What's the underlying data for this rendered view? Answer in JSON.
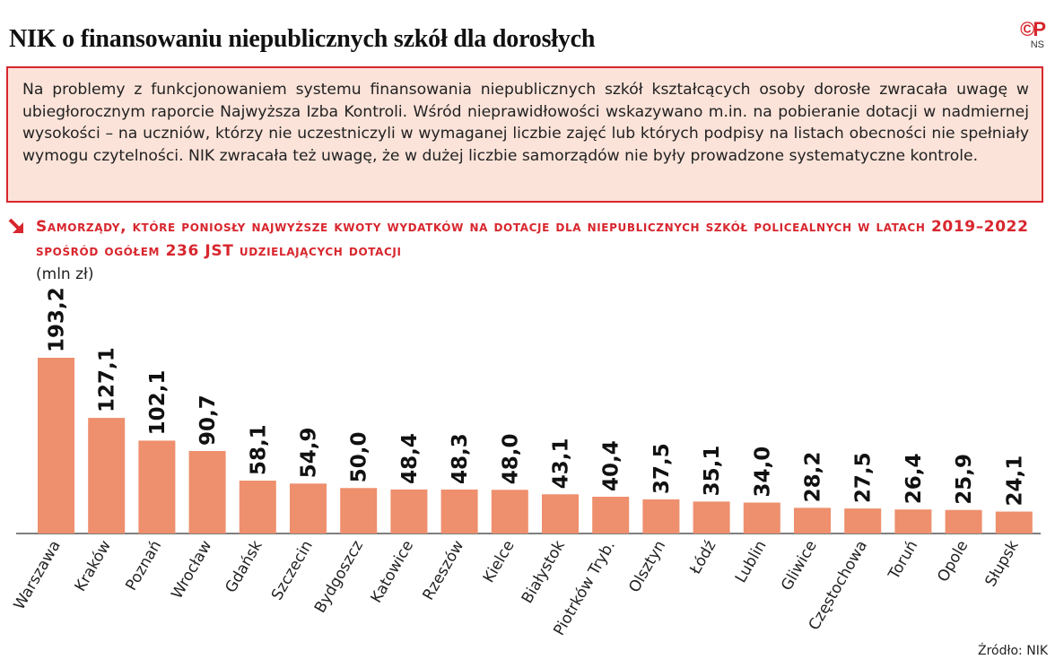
{
  "header": {
    "title": "NIK o finansowaniu niepublicznych szkół dla dorosłych",
    "logo_mark": "©P",
    "logo_initials": "NS"
  },
  "intro": {
    "text": "Na problemy z funkcjonowaniem systemu finansowania niepublicznych szkół kształcących osoby dorosłe zwracała uwagę w ubiegłorocznym raporcie Najwyższa Izba Kontroli. Wśród nieprawidłowości wskazywano m.in. na pobieranie dotacji w nadmiernej wysokości – na uczniów, którzy nie uczestniczyli w wymaganej liczbie zajęć lub których podpisy na listach obecności nie spełniały wymogu czytelności. NIK zwracała też uwagę, że w dużej liczbie samorządów nie były prowadzone systematyczne kontrole."
  },
  "colors": {
    "accent": "#d8262e",
    "bar": "#ee8f6d",
    "intro_bg": "#fbe3d9"
  },
  "icons": {
    "heading_marker": "arrow-down-right-icon"
  },
  "source": "Źródło: NIK",
  "chart_data": {
    "type": "bar",
    "title": "Samorządy, które poniosły najwyższe kwoty wydatków na dotacje dla niepublicznych szkół policealnych w latach 2019–2022 spośród ogółem 236 JST udzielających dotacji",
    "unit": "(mln zł)",
    "categories": [
      "Warszawa",
      "Kraków",
      "Poznań",
      "Wrocław",
      "Gdańsk",
      "Szczecin",
      "Bydgoszcz",
      "Katowice",
      "Rzeszów",
      "Kielce",
      "Białystok",
      "Piotrków Tryb.",
      "Olsztyn",
      "Łódź",
      "Lublin",
      "Gliwice",
      "Częstochowa",
      "Toruń",
      "Opole",
      "Słupsk"
    ],
    "values": [
      193.2,
      127.1,
      102.1,
      90.7,
      58.1,
      54.9,
      50.0,
      48.4,
      48.3,
      48.0,
      43.1,
      40.4,
      37.5,
      35.1,
      34.0,
      28.2,
      27.5,
      26.4,
      25.9,
      24.1
    ],
    "value_labels": [
      "193,2",
      "127,1",
      "102,1",
      "90,7",
      "58,1",
      "54,9",
      "50,0",
      "48,4",
      "48,3",
      "48,0",
      "43,1",
      "40,4",
      "37,5",
      "35,1",
      "34,0",
      "28,2",
      "27,5",
      "26,4",
      "25,9",
      "24,1"
    ],
    "ylim": [
      0,
      193.2
    ],
    "grid": false,
    "legend": "none"
  }
}
